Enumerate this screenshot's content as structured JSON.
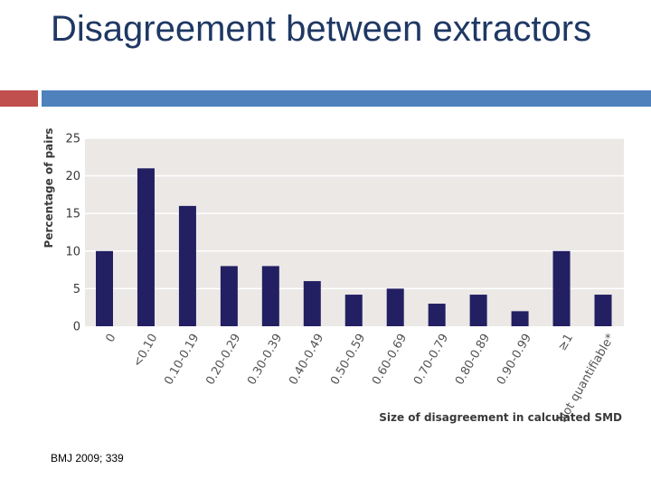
{
  "slide": {
    "title": "Disagreement between extractors",
    "citation": "BMJ 2009; 339"
  },
  "colors": {
    "title": "#1f3864",
    "accent_red": "#c0504d",
    "accent_blue": "#4f81bd",
    "bar": "#231f63",
    "plot_background": "#ebe8e6",
    "grid": "#ffffff"
  },
  "chart_data": {
    "type": "bar",
    "xlabel": "Size of disagreement in calculated SMD",
    "ylabel": "Percentage of pairs",
    "ylim": [
      0,
      25
    ],
    "yticks": [
      0,
      5,
      10,
      15,
      20,
      25
    ],
    "grid": true,
    "categories": [
      "0",
      "<0.10",
      "0.10-0.19",
      "0.20-0.29",
      "0.30-0.39",
      "0.40-0.49",
      "0.50-0.59",
      "0.60-0.69",
      "0.70-0.79",
      "0.80-0.89",
      "0.90-0.99",
      "≥1",
      "Not quantifiable*"
    ],
    "values": [
      10,
      21,
      16,
      8,
      8,
      6,
      4.2,
      5,
      3,
      4.2,
      2,
      10,
      4.2
    ]
  }
}
